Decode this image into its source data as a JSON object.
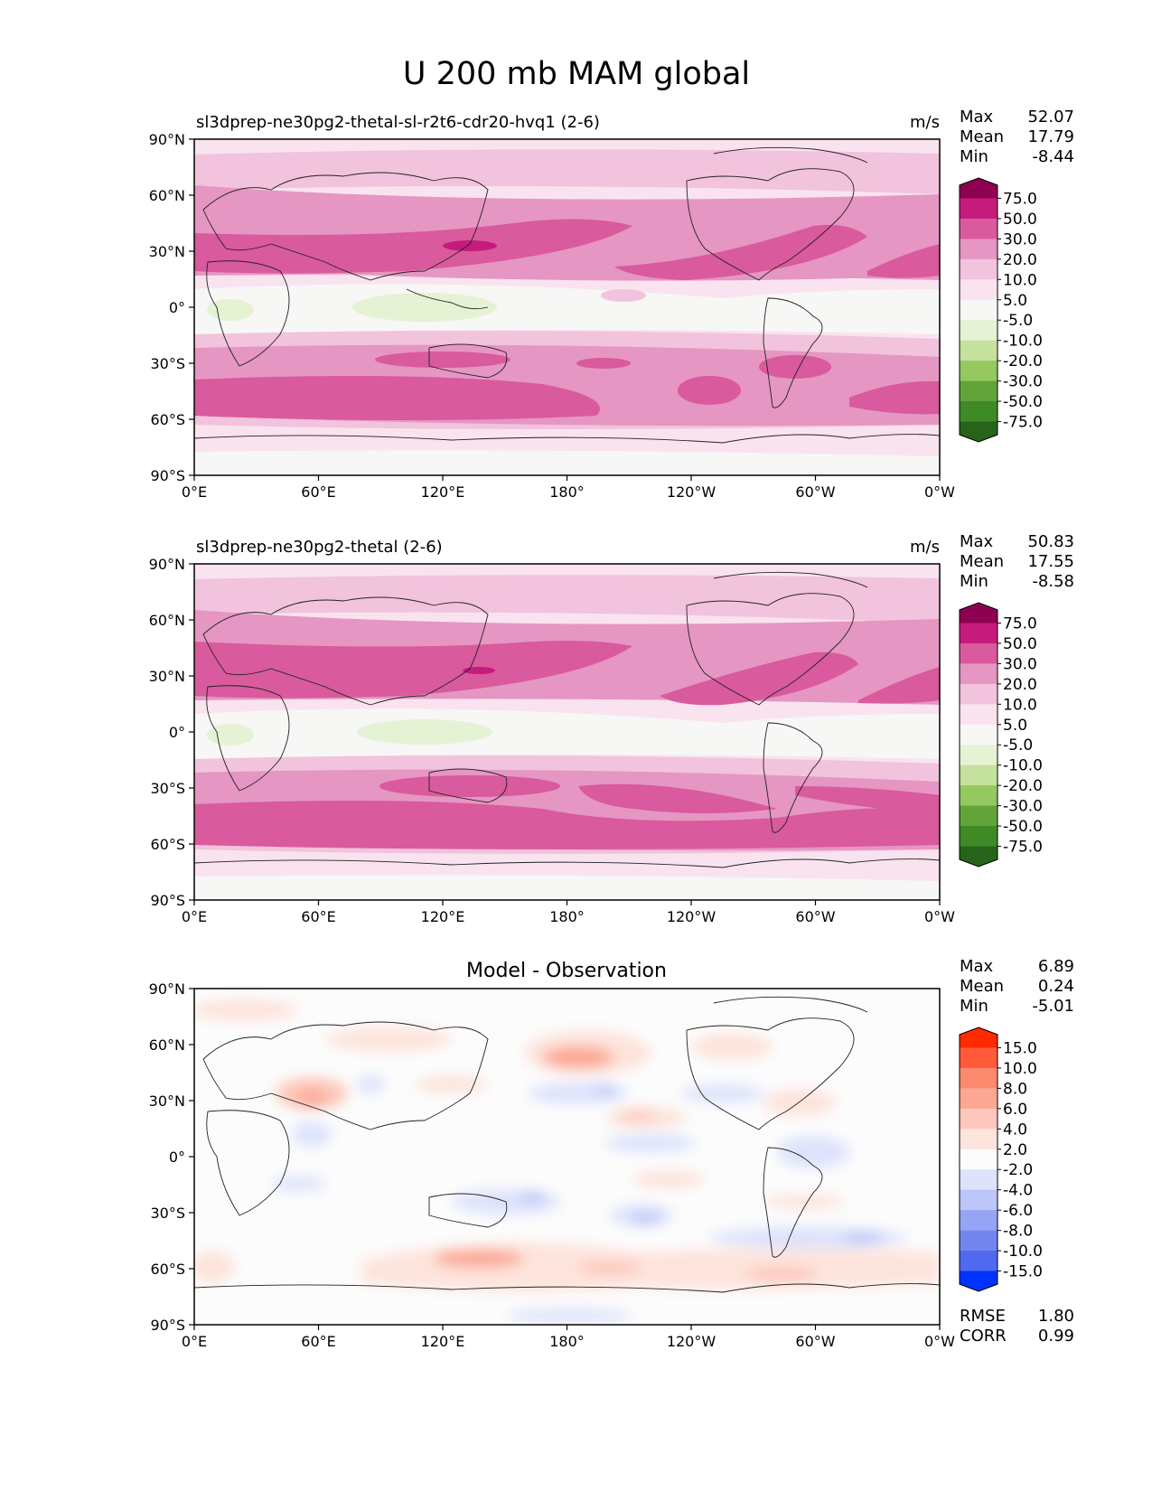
{
  "title": "U 200 mb MAM global",
  "panels": [
    {
      "subtitle_left": "sl3dprep-ne30pg2-thetal-sl-r2t6-cdr20-hvq1 (2-6)",
      "subtitle_center": "",
      "units": "m/s",
      "stats": [
        {
          "label": "Max",
          "value": "52.07"
        },
        {
          "label": "Mean",
          "value": "17.79"
        },
        {
          "label": "Min",
          "value": "-8.44"
        }
      ],
      "colorbar": {
        "ticks": [
          "75.0",
          "50.0",
          "30.0",
          "20.0",
          "10.0",
          "5.0",
          "-5.0",
          "-10.0",
          "-20.0",
          "-30.0",
          "-50.0",
          "-75.0"
        ],
        "colors": [
          "#8e0152",
          "#c51b7d",
          "#d95a9d",
          "#e596c2",
          "#f2c3dc",
          "#f9e3ef",
          "#f7f7f6",
          "#e5f2d4",
          "#c4e29d",
          "#93c95f",
          "#62a33a",
          "#3d8a27",
          "#276419"
        ]
      },
      "footer_stats": []
    },
    {
      "subtitle_left": "sl3dprep-ne30pg2-thetal (2-6)",
      "subtitle_center": "",
      "units": "m/s",
      "stats": [
        {
          "label": "Max",
          "value": "50.83"
        },
        {
          "label": "Mean",
          "value": "17.55"
        },
        {
          "label": "Min",
          "value": "-8.58"
        }
      ],
      "colorbar": {
        "ticks": [
          "75.0",
          "50.0",
          "30.0",
          "20.0",
          "10.0",
          "5.0",
          "-5.0",
          "-10.0",
          "-20.0",
          "-30.0",
          "-50.0",
          "-75.0"
        ],
        "colors": [
          "#8e0152",
          "#c51b7d",
          "#d95a9d",
          "#e596c2",
          "#f2c3dc",
          "#f9e3ef",
          "#f7f7f6",
          "#e5f2d4",
          "#c4e29d",
          "#93c95f",
          "#62a33a",
          "#3d8a27",
          "#276419"
        ]
      },
      "footer_stats": []
    },
    {
      "subtitle_left": "",
      "subtitle_center": "Model - Observation",
      "units": "",
      "stats": [
        {
          "label": "Max",
          "value": "6.89"
        },
        {
          "label": "Mean",
          "value": "0.24"
        },
        {
          "label": "Min",
          "value": "-5.01"
        }
      ],
      "colorbar": {
        "ticks": [
          "15.0",
          "10.0",
          "8.0",
          "6.0",
          "4.0",
          "2.0",
          "-2.0",
          "-4.0",
          "-6.0",
          "-8.0",
          "-10.0",
          "-15.0"
        ],
        "colors": [
          "#ff2a00",
          "#ff5a3a",
          "#fd8a6e",
          "#fca794",
          "#fdc8bb",
          "#fde4dc",
          "#fcfcfc",
          "#dde3fb",
          "#bcc6f8",
          "#96a5f3",
          "#7386f0",
          "#4f69f0",
          "#0033ff"
        ]
      },
      "footer_stats": [
        {
          "label": "RMSE",
          "value": "1.80"
        },
        {
          "label": "CORR",
          "value": "0.99"
        }
      ]
    }
  ],
  "axes": {
    "y_ticks": [
      "90°N",
      "60°N",
      "30°N",
      "0°",
      "30°S",
      "60°S",
      "90°S"
    ],
    "x_ticks": [
      "0°E",
      "60°E",
      "120°E",
      "180°",
      "120°W",
      "60°W",
      "0°W"
    ]
  }
}
